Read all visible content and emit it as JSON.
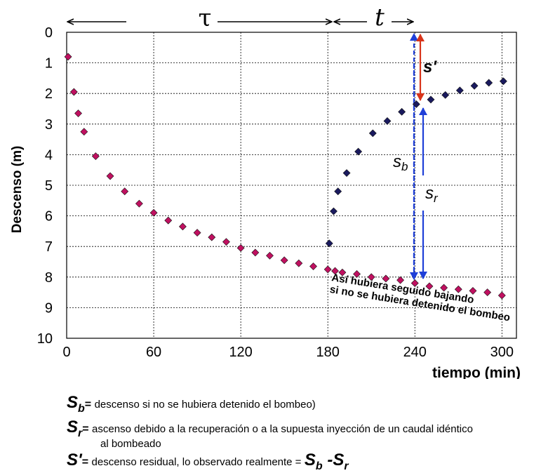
{
  "chart_data": {
    "type": "scatter",
    "xlabel": "tiempo (min)",
    "ylabel": "Descenso (m)",
    "xlim": [
      0,
      310
    ],
    "ylim": [
      0,
      10
    ],
    "y_inverted": true,
    "x_ticks": [
      "0",
      "60",
      "120",
      "180",
      "240",
      "300"
    ],
    "y_ticks": [
      "0",
      "1",
      "2",
      "3",
      "4",
      "5",
      "6",
      "7",
      "8",
      "9",
      "10"
    ],
    "grid": true,
    "series": [
      {
        "color": "#c01060",
        "x": [
          1,
          5,
          8,
          12,
          20,
          30,
          40,
          50,
          60,
          70,
          80,
          90,
          100,
          110,
          120,
          130,
          140,
          150,
          160,
          170,
          180
        ],
        "y": [
          0.8,
          1.95,
          2.65,
          3.25,
          4.05,
          4.7,
          5.2,
          5.6,
          5.9,
          6.15,
          6.35,
          6.55,
          6.7,
          6.85,
          7.05,
          7.2,
          7.3,
          7.45,
          7.55,
          7.65,
          7.75
        ]
      },
      {
        "color": "#c01060",
        "x": [
          185,
          190,
          200,
          210,
          220,
          230,
          240,
          250,
          260,
          270,
          280,
          290,
          300
        ],
        "y": [
          7.8,
          7.85,
          7.9,
          8.0,
          8.05,
          8.1,
          8.2,
          8.3,
          8.35,
          8.4,
          8.45,
          8.5,
          8.6
        ]
      },
      {
        "color": "#1a1a5e",
        "x": [
          181,
          184,
          187,
          193,
          201,
          211,
          221,
          231,
          241,
          251,
          261,
          271,
          281,
          291,
          301
        ],
        "y": [
          6.9,
          5.85,
          5.2,
          4.6,
          3.9,
          3.3,
          2.9,
          2.6,
          2.35,
          2.2,
          2.05,
          1.9,
          1.75,
          1.65,
          1.6
        ]
      }
    ],
    "annotations": {
      "tau": "τ",
      "t": "t",
      "s_prime": "s'",
      "s_b": "sb",
      "s_r": "sr",
      "note_line1": "Así hubiera seguido bajando",
      "note_line2": "si no se hubiera detenido el bombeo"
    }
  },
  "legend": {
    "sb_symbol": "S",
    "sb_sub": "b",
    "sb_eq": "=",
    "sb_text": "descenso si no se hubiera detenido el bombeo)",
    "sr_symbol": "S",
    "sr_sub": "r",
    "sr_eq": "=",
    "sr_text": "ascenso debido a la recuperación o a la supuesta inyección de un caudal idéntico",
    "sr_text2": "al bombeado",
    "sp_symbol": "S'",
    "sp_eq": "=",
    "sp_text": "descenso residual, lo observado realmente =",
    "sp_f1": "S",
    "sp_f1_sub": "b",
    "sp_minus": " -",
    "sp_f2": "S",
    "sp_f2_sub": "r"
  }
}
